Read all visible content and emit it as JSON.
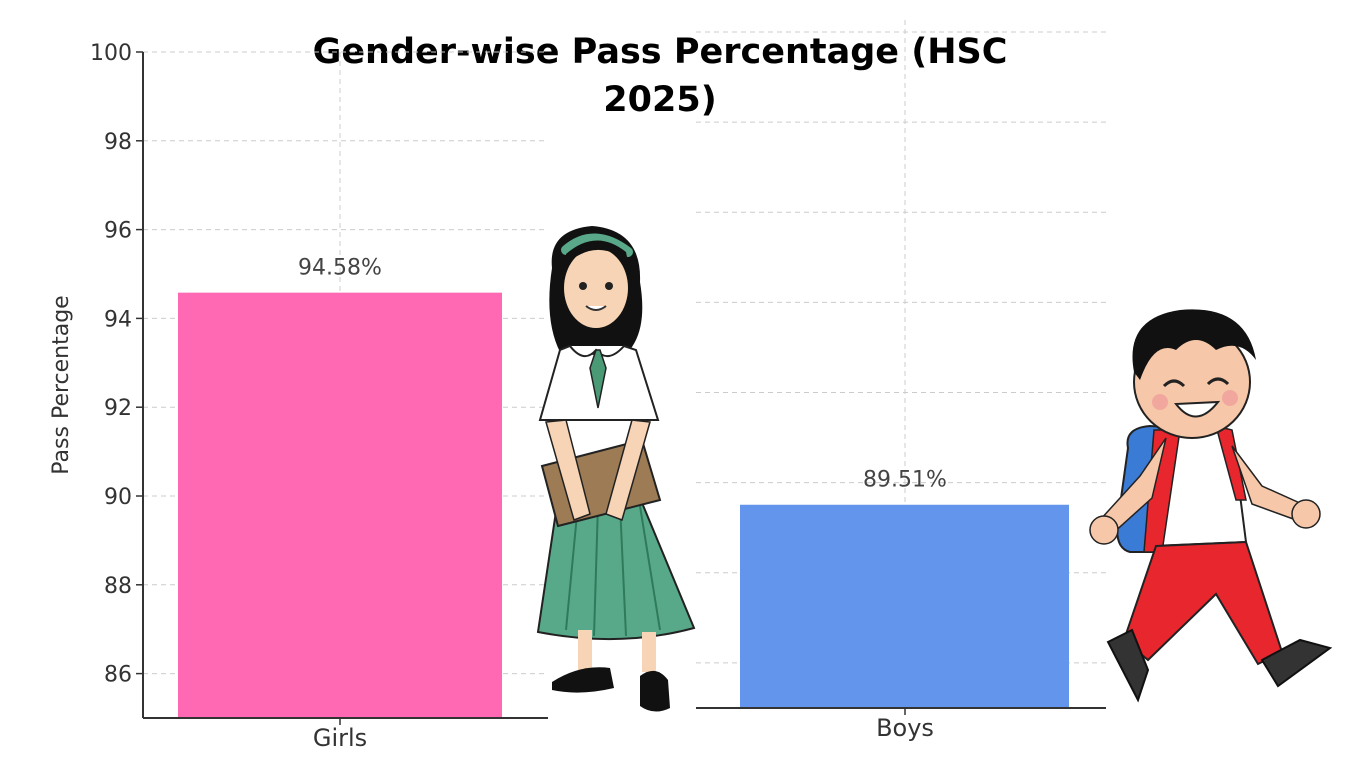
{
  "chart_data": {
    "type": "bar",
    "title": "Gender-wise Pass Percentage (HSC 2025)",
    "xlabel": "",
    "ylabel": "Pass Percentage",
    "ylim": [
      85,
      100
    ],
    "yticks": [
      86,
      88,
      90,
      92,
      94,
      96,
      98,
      100
    ],
    "grid": true,
    "categories": [
      "Girls",
      "Boys"
    ],
    "values": [
      94.58,
      89.51
    ],
    "data_labels": [
      "94.58%",
      "89.51%"
    ],
    "colors": [
      "#ff69b4",
      "#6495ed"
    ]
  },
  "illustrations": [
    {
      "name": "schoolgirl-illustration",
      "description": "girl in school uniform holding a book"
    },
    {
      "name": "schoolboy-illustration",
      "description": "boy with backpack walking"
    }
  ]
}
